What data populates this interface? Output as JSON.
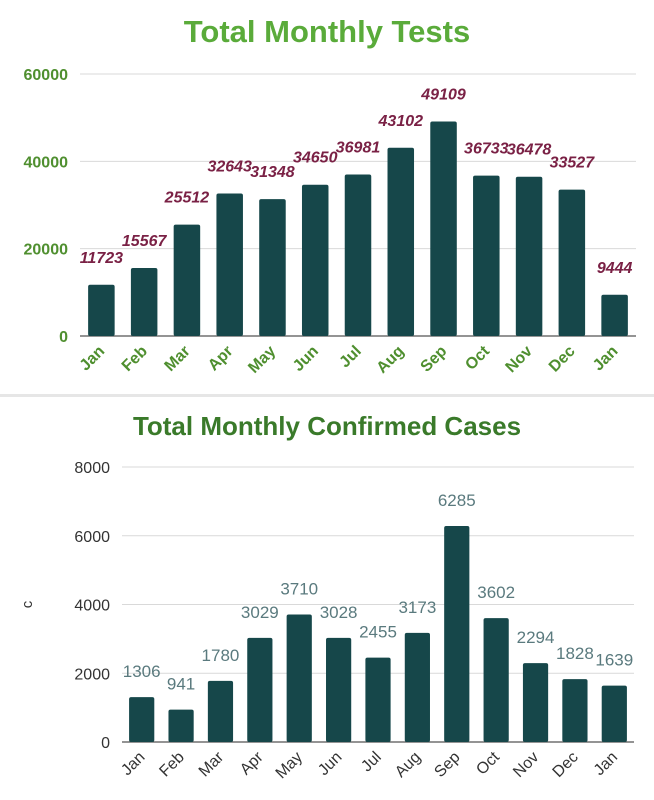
{
  "chart_data": [
    {
      "type": "bar",
      "title": "Total Monthly Tests",
      "categories": [
        "Jan",
        "Feb",
        "Mar",
        "Apr",
        "May",
        "Jun",
        "Jul",
        "Aug",
        "Sep",
        "Oct",
        "Nov",
        "Dec",
        "Jan"
      ],
      "values": [
        11723,
        15567,
        25512,
        32643,
        31348,
        34650,
        36981,
        43102,
        49109,
        36733,
        36478,
        33527,
        9444
      ],
      "data_labels": [
        "11723",
        "15567",
        "25512",
        "32643",
        "31348",
        "34650",
        "36981",
        "43102",
        "49109",
        "36733",
        "36478",
        "33527",
        "9444"
      ],
      "ylim": [
        0,
        60000
      ],
      "yticks": [
        "0",
        "20000",
        "40000",
        "60000"
      ],
      "ytick_values": [
        0,
        20000,
        40000,
        60000
      ],
      "xlabel": "",
      "ylabel": "",
      "grid": true,
      "colors": {
        "bar": "#16474a",
        "title": "#5aab3a",
        "ticks": "#4f8f2f",
        "data_label": "#7a2145",
        "grid": "#d9d9d9"
      }
    },
    {
      "type": "bar",
      "title": "Total Monthly Confirmed Cases",
      "categories": [
        "Jan",
        "Feb",
        "Mar",
        "Apr",
        "May",
        "Jun",
        "Jul",
        "Aug",
        "Sep",
        "Oct",
        "Nov",
        "Dec",
        "Jan"
      ],
      "values": [
        1306,
        941,
        1780,
        3029,
        3710,
        3028,
        2455,
        3173,
        6285,
        3602,
        2294,
        1828,
        1639
      ],
      "data_labels": [
        "1306",
        "941",
        "1780",
        "3029",
        "3710",
        "3028",
        "2455",
        "3173",
        "6285",
        "3602",
        "2294",
        "1828",
        "1639"
      ],
      "ylim": [
        0,
        8000
      ],
      "yticks": [
        "0",
        "2000",
        "4000",
        "6000",
        "8000"
      ],
      "ytick_values": [
        0,
        2000,
        4000,
        6000,
        8000
      ],
      "xlabel": "",
      "ylabel": "c",
      "grid": true,
      "colors": {
        "bar": "#16474a",
        "title": "#3a7a2a",
        "ticks": "#333333",
        "data_label": "#5a7a7e",
        "grid": "#d9d9d9"
      }
    }
  ]
}
